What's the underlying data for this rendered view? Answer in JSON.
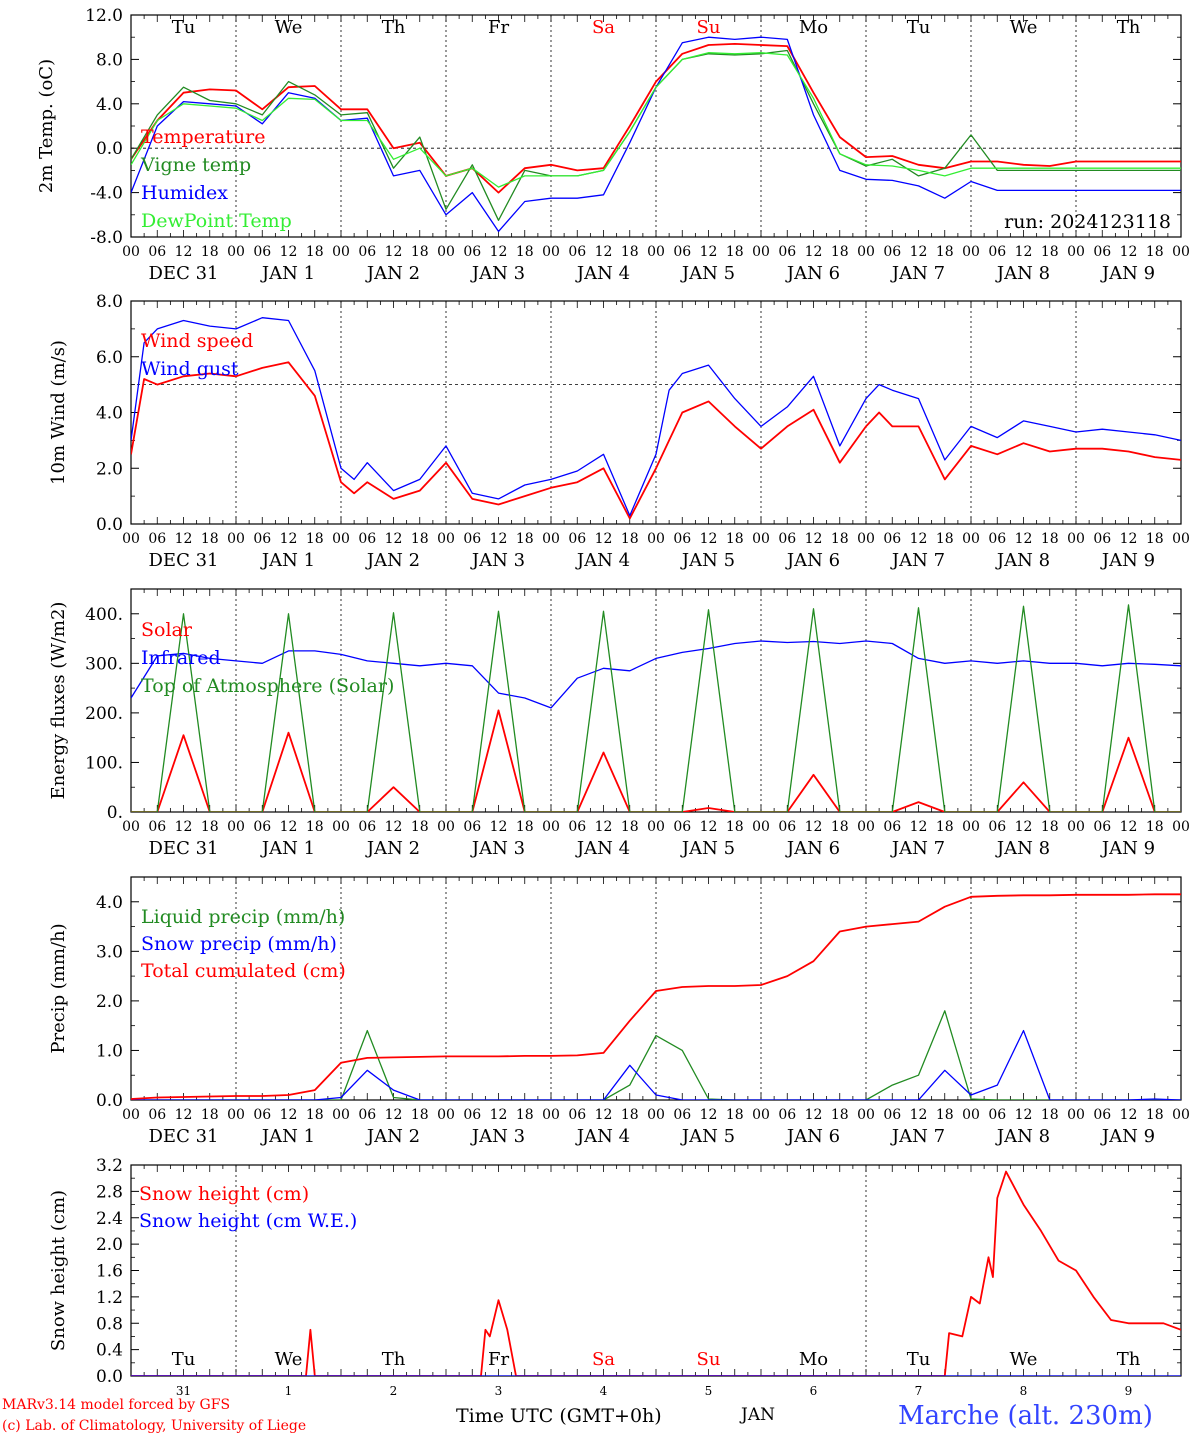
{
  "footer": {
    "model": "MARv3.14 model forced by GFS",
    "copyright": "(c) Lab. of Climatology, University of Liege",
    "station": "Marche (alt. 230m)",
    "xlabel": "Time UTC (GMT+0h)",
    "month": "JAN"
  },
  "colors": {
    "red": "#ff0000",
    "green": "#228b22",
    "blue": "#0000ff",
    "lime": "#33ee33",
    "grid": "#000000"
  },
  "x_axis": {
    "hour_ticks": [
      "00",
      "06",
      "12",
      "18"
    ],
    "date_labels": [
      [
        "DEC",
        "31"
      ],
      [
        "JAN",
        "1"
      ],
      [
        "JAN",
        "2"
      ],
      [
        "JAN",
        "3"
      ],
      [
        "JAN",
        "4"
      ],
      [
        "JAN",
        "5"
      ],
      [
        "JAN",
        "6"
      ],
      [
        "JAN",
        "7"
      ],
      [
        "JAN",
        "8"
      ],
      [
        "JAN",
        "9"
      ]
    ],
    "days_short": [
      "Tu",
      "We",
      "Th",
      "Fr",
      "Sa",
      "Su",
      "Mo",
      "Tu",
      "We",
      "Th"
    ],
    "weekend_days": [
      "Sa",
      "Su"
    ],
    "day_numbers": [
      "31",
      "1",
      "2",
      "3",
      "4",
      "5",
      "6",
      "7",
      "8",
      "9"
    ],
    "start": "2024-12-31T00:00Z",
    "end": "2025-01-10T00:00Z"
  },
  "chart_data": [
    {
      "type": "line",
      "ylabel": "2m Temp. (oC)",
      "ylim": [
        -8,
        12
      ],
      "yticks": [
        "12.0",
        "8.0",
        "4.0",
        "0.0",
        "-4.0",
        "-8.0"
      ],
      "ref_line": 0,
      "annotation": "run: 2024123118",
      "legend": [
        "Temperature",
        "Vigne temp",
        "Humidex",
        "DewPoint Temp"
      ],
      "x_hours": [
        0,
        6,
        12,
        18,
        24,
        30,
        36,
        42,
        48,
        54,
        60,
        66,
        72,
        78,
        84,
        90,
        96,
        102,
        108,
        114,
        120,
        126,
        132,
        138,
        144,
        150,
        156,
        162,
        168,
        174,
        180,
        186,
        192,
        198,
        204,
        210,
        216,
        222,
        228,
        234,
        240
      ],
      "series": [
        {
          "name": "Temperature",
          "color": "red",
          "values": [
            -1.0,
            2.5,
            5.0,
            5.3,
            5.2,
            3.5,
            5.5,
            5.6,
            3.5,
            3.5,
            0.0,
            0.5,
            -2.5,
            -1.8,
            -4.0,
            -1.8,
            -1.5,
            -2.0,
            -1.8,
            2.0,
            6.0,
            8.5,
            9.3,
            9.4,
            9.3,
            9.2,
            5.0,
            1.0,
            -0.8,
            -0.7,
            -1.5,
            -1.8,
            -1.2,
            -1.2,
            -1.5,
            -1.6,
            -1.2,
            -1.2,
            -1.2,
            -1.2,
            -1.2
          ]
        },
        {
          "name": "Vigne temp",
          "color": "green",
          "values": [
            -1.0,
            3.0,
            5.5,
            4.3,
            4.0,
            3.0,
            6.0,
            4.8,
            3.0,
            3.2,
            -1.8,
            1.0,
            -5.5,
            -1.5,
            -6.5,
            -2.0,
            -2.5,
            -2.5,
            -2.0,
            1.5,
            5.5,
            8.0,
            8.5,
            8.4,
            8.5,
            8.8,
            4.0,
            -0.5,
            -1.6,
            -1.0,
            -2.5,
            -1.8,
            1.2,
            -2.0,
            -2.0,
            -2.0,
            -2.0,
            -2.0,
            -2.0,
            -2.0,
            -2.0
          ]
        },
        {
          "name": "Humidex",
          "color": "blue",
          "values": [
            -4.0,
            2.0,
            4.2,
            4.0,
            3.8,
            2.2,
            5.0,
            4.5,
            2.5,
            2.7,
            -2.5,
            -2.0,
            -6.0,
            -4.0,
            -7.5,
            -4.8,
            -4.5,
            -4.5,
            -4.2,
            0.5,
            5.5,
            9.5,
            10.0,
            9.8,
            10.0,
            9.8,
            3.0,
            -2.0,
            -2.8,
            -2.9,
            -3.4,
            -4.5,
            -3.0,
            -3.8,
            -3.8,
            -3.8,
            -3.8,
            -3.8,
            -3.8,
            -3.8,
            -3.8
          ]
        },
        {
          "name": "DewPoint Temp",
          "color": "lime",
          "values": [
            -1.5,
            2.5,
            4.0,
            3.8,
            3.6,
            2.5,
            4.5,
            4.4,
            2.5,
            2.5,
            -1.0,
            0.0,
            -2.5,
            -1.8,
            -3.5,
            -2.5,
            -2.5,
            -2.5,
            -2.0,
            1.5,
            5.5,
            8.0,
            8.6,
            8.5,
            8.6,
            8.4,
            4.5,
            -0.5,
            -1.5,
            -1.6,
            -2.0,
            -2.5,
            -1.8,
            -1.8,
            -1.8,
            -1.8,
            -1.8,
            -1.8,
            -1.8,
            -1.8,
            -1.8
          ]
        }
      ]
    },
    {
      "type": "line",
      "ylabel": "10m Wind (m/s)",
      "ylim": [
        0,
        8
      ],
      "yticks": [
        "8.0",
        "6.0",
        "4.0",
        "2.0",
        "0.0"
      ],
      "ref_line": 5,
      "legend": [
        "Wind speed",
        "Wind gust"
      ],
      "x_hours": [
        0,
        3,
        6,
        12,
        18,
        24,
        30,
        36,
        42,
        48,
        51,
        54,
        60,
        66,
        72,
        78,
        84,
        90,
        96,
        102,
        108,
        114,
        120,
        123,
        126,
        132,
        138,
        144,
        150,
        156,
        162,
        168,
        171,
        174,
        180,
        186,
        192,
        198,
        204,
        210,
        216,
        222,
        228,
        234,
        240
      ],
      "series": [
        {
          "name": "Wind speed",
          "color": "red",
          "values": [
            2.5,
            5.2,
            5.0,
            5.3,
            5.4,
            5.3,
            5.6,
            5.8,
            4.6,
            1.5,
            1.1,
            1.5,
            0.9,
            1.2,
            2.2,
            0.9,
            0.7,
            1.0,
            1.3,
            1.5,
            2.0,
            0.2,
            2.0,
            3.0,
            4.0,
            4.4,
            3.5,
            2.7,
            3.5,
            4.1,
            2.2,
            3.5,
            4.0,
            3.5,
            3.5,
            1.6,
            2.8,
            2.5,
            2.9,
            2.6,
            2.7,
            2.7,
            2.6,
            2.4,
            2.3
          ]
        },
        {
          "name": "Wind gust",
          "color": "blue",
          "values": [
            3.0,
            6.5,
            7.0,
            7.3,
            7.1,
            7.0,
            7.4,
            7.3,
            5.5,
            2.0,
            1.6,
            2.2,
            1.2,
            1.6,
            2.8,
            1.1,
            0.9,
            1.4,
            1.6,
            1.9,
            2.5,
            0.3,
            2.5,
            4.8,
            5.4,
            5.7,
            4.5,
            3.5,
            4.2,
            5.3,
            2.8,
            4.5,
            5.0,
            4.8,
            4.5,
            2.3,
            3.5,
            3.1,
            3.7,
            3.5,
            3.3,
            3.4,
            3.3,
            3.2,
            3.0
          ]
        }
      ]
    },
    {
      "type": "line",
      "ylabel": "Energy fluxes (W/m2)",
      "ylim": [
        0,
        450
      ],
      "yticks": [
        "400.",
        "300.",
        "200.",
        "100.",
        "0."
      ],
      "legend": [
        "Solar",
        "Infrared",
        "Top of Atmosphere (Solar)"
      ],
      "x_hours": [
        0,
        6,
        12,
        18,
        24,
        30,
        36,
        42,
        48,
        54,
        60,
        66,
        72,
        78,
        84,
        90,
        96,
        102,
        108,
        114,
        120,
        126,
        132,
        138,
        144,
        150,
        156,
        162,
        168,
        174,
        180,
        186,
        192,
        198,
        204,
        210,
        216,
        222,
        228,
        234,
        240
      ],
      "series": [
        {
          "name": "Solar",
          "color": "red",
          "values": [
            0,
            0,
            155,
            0,
            0,
            0,
            160,
            0,
            0,
            0,
            50,
            0,
            0,
            0,
            205,
            0,
            0,
            0,
            120,
            0,
            0,
            0,
            8,
            0,
            0,
            0,
            75,
            0,
            0,
            0,
            20,
            0,
            0,
            0,
            60,
            0,
            0,
            0,
            150,
            0,
            0
          ]
        },
        {
          "name": "Infrared",
          "color": "blue",
          "values": [
            230,
            315,
            320,
            310,
            305,
            300,
            325,
            325,
            318,
            305,
            300,
            295,
            300,
            295,
            240,
            230,
            210,
            270,
            290,
            285,
            310,
            322,
            330,
            340,
            345,
            342,
            344,
            340,
            345,
            340,
            310,
            300,
            305,
            300,
            305,
            300,
            300,
            295,
            300,
            298,
            295
          ]
        },
        {
          "name": "Top of Atmosphere (Solar)",
          "color": "green",
          "values": [
            0,
            0,
            400,
            0,
            0,
            0,
            400,
            0,
            0,
            0,
            402,
            0,
            0,
            0,
            405,
            0,
            0,
            0,
            405,
            0,
            0,
            0,
            408,
            0,
            0,
            0,
            410,
            0,
            0,
            0,
            412,
            0,
            0,
            0,
            415,
            0,
            0,
            0,
            418,
            0,
            0
          ]
        }
      ]
    },
    {
      "type": "line",
      "ylabel": "Precip (mm/h)",
      "ylim": [
        0,
        4.5
      ],
      "yticks": [
        "4.0",
        "3.0",
        "2.0",
        "1.0",
        "0.0"
      ],
      "legend": [
        "Liquid precip (mm/h)",
        "Snow precip (mm/h)",
        "Total cumulated (cm)"
      ],
      "x_hours": [
        0,
        6,
        12,
        18,
        24,
        30,
        36,
        42,
        48,
        54,
        60,
        66,
        72,
        78,
        84,
        90,
        96,
        102,
        108,
        114,
        120,
        126,
        132,
        138,
        144,
        150,
        156,
        162,
        168,
        174,
        180,
        186,
        192,
        198,
        204,
        210,
        216,
        222,
        228,
        234,
        240
      ],
      "series": [
        {
          "name": "Liquid precip (mm/h)",
          "color": "green",
          "values": [
            0,
            0,
            0,
            0,
            0,
            0,
            0,
            0,
            0,
            1.4,
            0.05,
            0,
            0,
            0,
            0,
            0,
            0,
            0,
            0,
            0.3,
            1.3,
            1.0,
            0.02,
            0,
            0,
            0,
            0,
            0,
            0,
            0.3,
            0.5,
            1.8,
            0.02,
            0,
            0,
            0,
            0,
            0,
            0,
            0,
            0
          ]
        },
        {
          "name": "Snow precip (mm/h)",
          "color": "blue",
          "values": [
            0,
            0,
            0,
            0,
            0,
            0,
            0,
            0,
            0.05,
            0.6,
            0.2,
            0,
            0,
            0,
            0,
            0,
            0,
            0,
            0,
            0.7,
            0.1,
            0,
            0,
            0,
            0,
            0,
            0,
            0,
            0,
            0,
            0,
            0.6,
            0.1,
            0.3,
            1.4,
            0,
            0,
            0,
            0,
            0.02,
            0
          ]
        },
        {
          "name": "Total cumulated (cm)",
          "color": "red",
          "values": [
            0.02,
            0.05,
            0.06,
            0.07,
            0.08,
            0.08,
            0.1,
            0.2,
            0.75,
            0.85,
            0.86,
            0.87,
            0.88,
            0.88,
            0.88,
            0.89,
            0.89,
            0.9,
            0.95,
            1.6,
            2.2,
            2.28,
            2.3,
            2.3,
            2.32,
            2.5,
            2.8,
            3.4,
            3.5,
            3.55,
            3.6,
            3.9,
            4.1,
            4.12,
            4.13,
            4.13,
            4.14,
            4.14,
            4.14,
            4.15,
            4.15
          ]
        }
      ]
    },
    {
      "type": "line",
      "ylabel": "Snow height (cm)",
      "ylim": [
        0,
        3.2
      ],
      "yticks": [
        "3.2",
        "2.8",
        "2.4",
        "2.0",
        "1.6",
        "1.2",
        "0.8",
        "0.4",
        "0.0"
      ],
      "legend": [
        "Snow height (cm)",
        "Snow height (cm W.E.)"
      ],
      "x_hours": [
        0,
        40,
        41,
        42,
        43,
        44,
        80,
        81,
        82,
        84,
        86,
        88,
        186,
        187,
        190,
        192,
        194,
        196,
        197,
        198,
        200,
        204,
        208,
        212,
        216,
        220,
        224,
        228,
        232,
        236,
        240
      ],
      "series": [
        {
          "name": "Snow height (cm)",
          "color": "red",
          "values": [
            0,
            0,
            0.7,
            0,
            0,
            0,
            0,
            0.7,
            0.6,
            1.15,
            0.7,
            0,
            0,
            0.65,
            0.6,
            1.2,
            1.1,
            1.8,
            1.5,
            2.7,
            3.1,
            2.6,
            2.2,
            1.75,
            1.6,
            1.2,
            0.85,
            0.8,
            0.8,
            0.8,
            0.7
          ]
        },
        {
          "name": "Snow height (cm W.E.)",
          "color": "blue",
          "values": [
            0,
            0,
            0,
            0,
            0,
            0,
            0,
            0,
            0,
            0,
            0,
            0,
            0,
            0,
            0,
            0,
            0,
            0,
            0,
            0,
            0,
            0,
            0,
            0,
            0,
            0,
            0,
            0,
            0,
            0,
            0
          ]
        }
      ]
    }
  ]
}
